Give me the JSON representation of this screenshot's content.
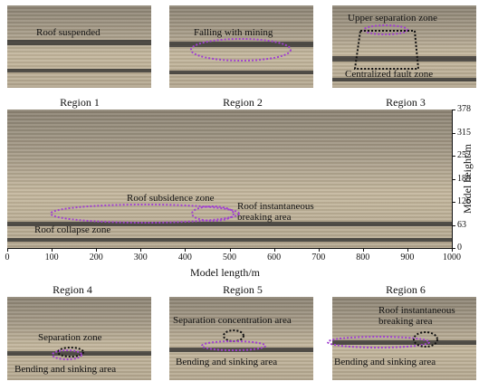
{
  "panels_top": [
    {
      "caption": "Region 1",
      "annotations": [
        "Roof suspended"
      ]
    },
    {
      "caption": "Region 2",
      "annotations": [
        "Falling with mining"
      ]
    },
    {
      "caption": "Region 3",
      "annotations": [
        "Upper separation zone",
        "Centralized fault zone"
      ]
    }
  ],
  "panels_bottom": [
    {
      "caption": "Region 4",
      "annotations": [
        "Separation zone",
        "Bending and sinking area"
      ]
    },
    {
      "caption": "Region 5",
      "annotations": [
        "Separation concentration area",
        "Bending and sinking area"
      ]
    },
    {
      "caption": "Region 6",
      "annotations": [
        "Roof instantaneous",
        "breaking area",
        "Bending and sinking area"
      ]
    }
  ],
  "main_annotations": {
    "subsidence": "Roof subsidence zone",
    "instant1": "Roof instantaneous",
    "instant2": "breaking area",
    "collapse": "Roof collapse zone"
  },
  "axes": {
    "xlabel": "Model length/m",
    "ylabel": "Model height/m",
    "xticks": [
      "0",
      "100",
      "200",
      "300",
      "400",
      "500",
      "600",
      "700",
      "800",
      "900",
      "1000"
    ],
    "yticks": [
      "0",
      "63",
      "126",
      "189",
      "252",
      "315",
      "378"
    ]
  },
  "colors": {
    "dashed_purple": "#a040d0",
    "dashed_black": "#111111"
  }
}
